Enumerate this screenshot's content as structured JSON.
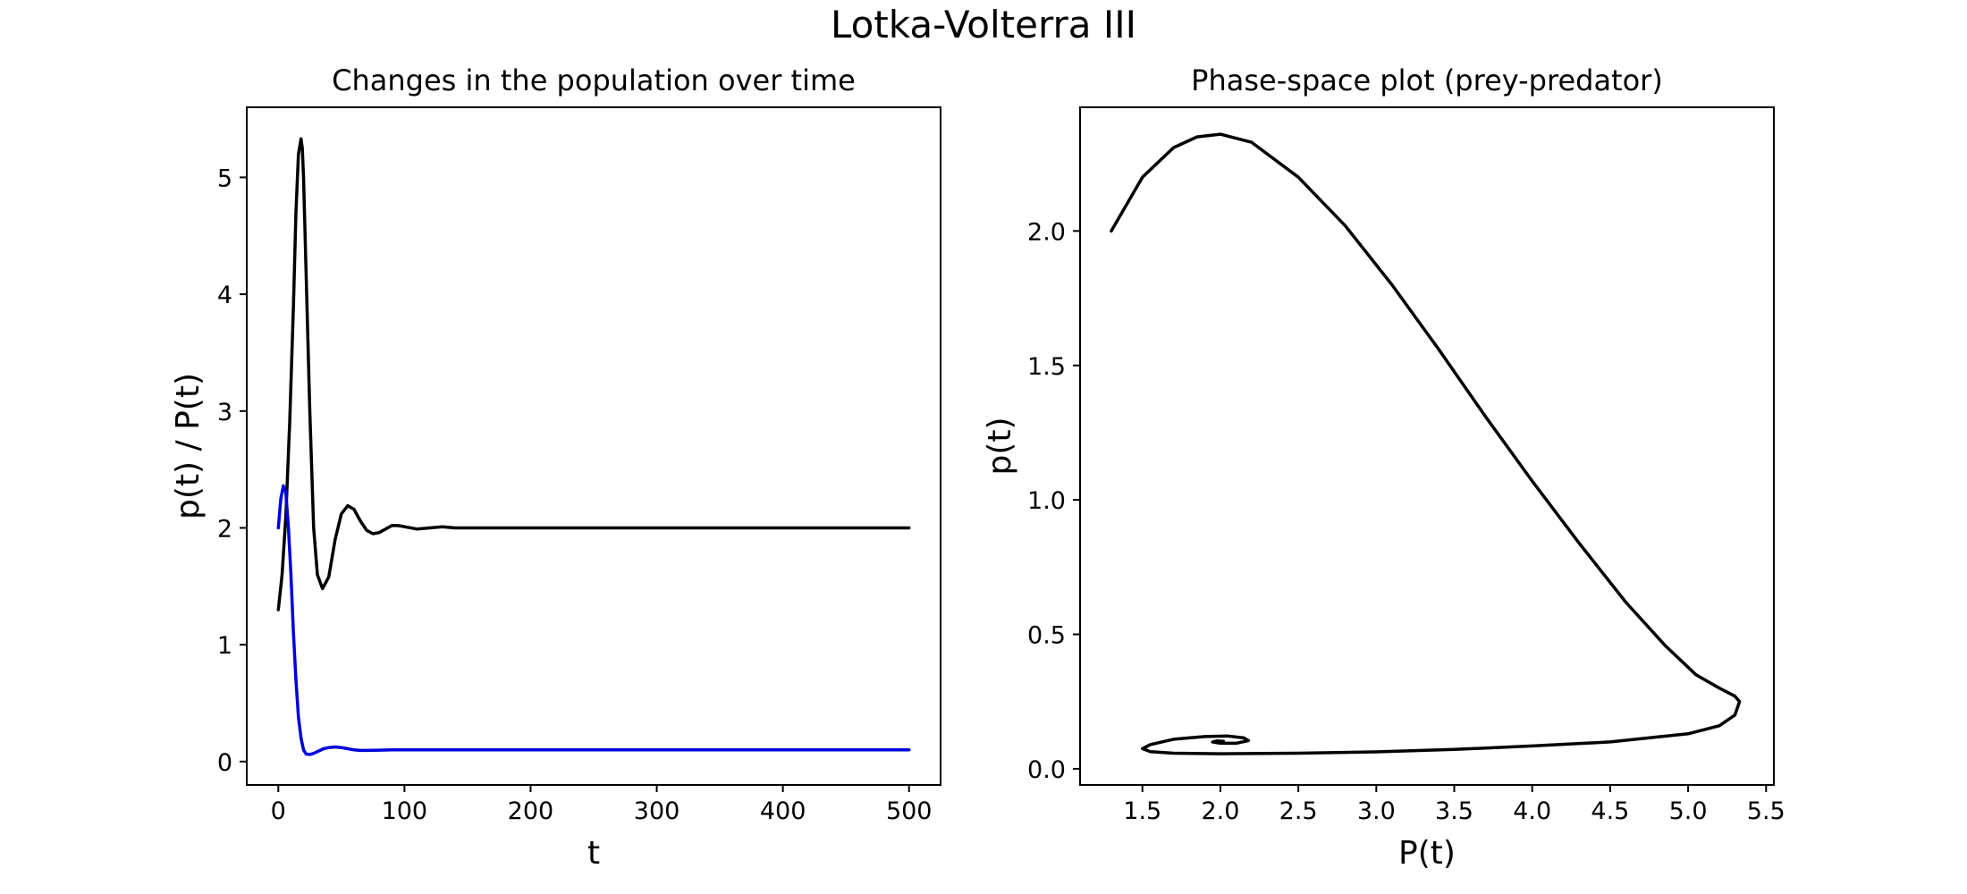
{
  "figure": {
    "title": "Lotka-Volterra III"
  },
  "chart_data": [
    {
      "type": "line",
      "title": "Changes in the population over time",
      "xlabel": "t",
      "ylabel": "p(t) / P(t)",
      "xlim": [
        -25,
        525
      ],
      "ylim": [
        -0.2,
        5.6
      ],
      "xticks": [
        0,
        100,
        200,
        300,
        400,
        500
      ],
      "xtick_labels": [
        "0",
        "100",
        "200",
        "300",
        "400",
        "500"
      ],
      "yticks": [
        0,
        1,
        2,
        3,
        4,
        5
      ],
      "ytick_labels": [
        "0",
        "1",
        "2",
        "3",
        "4",
        "5"
      ],
      "grid": false,
      "series": [
        {
          "color": "#000000",
          "x": [
            0,
            3,
            6,
            9,
            12,
            14,
            16,
            18,
            19,
            20,
            22,
            25,
            28,
            31,
            35,
            40,
            45,
            50,
            55,
            60,
            65,
            70,
            75,
            80,
            85,
            90,
            95,
            100,
            110,
            120,
            130,
            140,
            150,
            160,
            180,
            200,
            300,
            400,
            500
          ],
          "y": [
            1.3,
            1.6,
            2.1,
            2.9,
            3.9,
            4.7,
            5.2,
            5.33,
            5.25,
            5.0,
            4.2,
            3.0,
            2.0,
            1.6,
            1.48,
            1.58,
            1.9,
            2.12,
            2.19,
            2.16,
            2.06,
            1.98,
            1.95,
            1.96,
            1.99,
            2.02,
            2.02,
            2.01,
            1.99,
            2.0,
            2.01,
            2.0,
            2.0,
            2.0,
            2.0,
            2.0,
            2.0,
            2.0,
            2.0
          ]
        },
        {
          "color": "#0000dd",
          "x": [
            0,
            2,
            4,
            6,
            8,
            10,
            12,
            14,
            16,
            18,
            20,
            22,
            25,
            28,
            32,
            36,
            40,
            45,
            50,
            55,
            60,
            65,
            70,
            80,
            90,
            100,
            120,
            150,
            200,
            300,
            400,
            500
          ],
          "y": [
            2.0,
            2.25,
            2.36,
            2.3,
            2.0,
            1.6,
            1.1,
            0.7,
            0.38,
            0.2,
            0.1,
            0.065,
            0.06,
            0.07,
            0.09,
            0.11,
            0.12,
            0.125,
            0.12,
            0.11,
            0.1,
            0.095,
            0.095,
            0.098,
            0.101,
            0.1,
            0.1,
            0.1,
            0.1,
            0.1,
            0.1,
            0.1
          ]
        }
      ]
    },
    {
      "type": "line",
      "title": "Phase-space plot (prey-predator)",
      "xlabel": "P(t)",
      "ylabel": "p(t)",
      "xlim": [
        1.1,
        5.55
      ],
      "ylim": [
        -0.06,
        2.46
      ],
      "xticks": [
        1.5,
        2.0,
        2.5,
        3.0,
        3.5,
        4.0,
        4.5,
        5.0,
        5.5
      ],
      "xtick_labels": [
        "1.5",
        "2.0",
        "2.5",
        "3.0",
        "3.5",
        "4.0",
        "4.5",
        "5.0",
        "5.5"
      ],
      "yticks": [
        0.0,
        0.5,
        1.0,
        1.5,
        2.0
      ],
      "ytick_labels": [
        "0.0",
        "0.5",
        "1.0",
        "1.5",
        "2.0"
      ],
      "grid": false,
      "series": [
        {
          "color": "#000000",
          "x": [
            1.3,
            1.5,
            1.7,
            1.85,
            2.0,
            2.2,
            2.5,
            2.8,
            3.1,
            3.4,
            3.7,
            4.0,
            4.3,
            4.6,
            4.85,
            5.05,
            5.2,
            5.3,
            5.33,
            5.3,
            5.2,
            5.0,
            4.5,
            4.0,
            3.5,
            3.0,
            2.5,
            2.0,
            1.7,
            1.55,
            1.5,
            1.55,
            1.7,
            1.9,
            2.05,
            2.15,
            2.18,
            2.1,
            2.0,
            1.95,
            1.98,
            2.02,
            2.0
          ],
          "y": [
            2.0,
            2.2,
            2.31,
            2.35,
            2.36,
            2.33,
            2.2,
            2.02,
            1.8,
            1.56,
            1.31,
            1.07,
            0.84,
            0.62,
            0.46,
            0.35,
            0.3,
            0.27,
            0.25,
            0.2,
            0.16,
            0.13,
            0.1,
            0.085,
            0.072,
            0.063,
            0.058,
            0.056,
            0.058,
            0.064,
            0.075,
            0.09,
            0.11,
            0.12,
            0.122,
            0.115,
            0.105,
            0.095,
            0.095,
            0.1,
            0.104,
            0.102,
            0.1
          ]
        }
      ]
    }
  ]
}
